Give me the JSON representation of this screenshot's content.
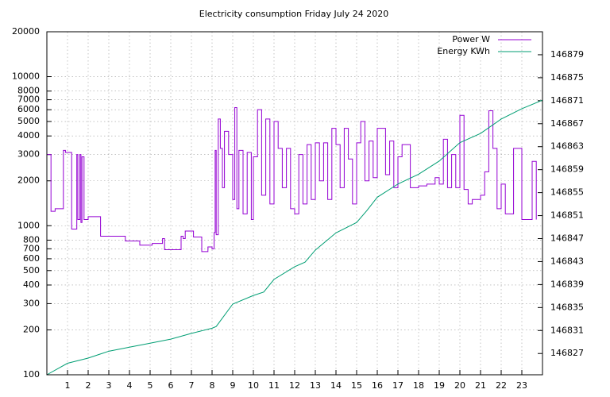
{
  "chart_data": {
    "type": "line",
    "title": "Electricity consumption Friday July 24 2020",
    "xlim": [
      0,
      24
    ],
    "xticks": [
      1,
      2,
      3,
      4,
      5,
      6,
      7,
      8,
      9,
      10,
      11,
      12,
      13,
      14,
      15,
      16,
      17,
      18,
      19,
      20,
      21,
      22,
      23
    ],
    "ylim": [
      100,
      20000
    ],
    "yscale": "log",
    "yticks": [
      100,
      200,
      300,
      400,
      500,
      600,
      700,
      800,
      1000,
      2000,
      3000,
      4000,
      5000,
      6000,
      7000,
      8000,
      10000,
      20000
    ],
    "y2lim": [
      146823.3,
      146883
    ],
    "y2ticks": [
      146827,
      146831,
      146835,
      146839,
      146843,
      146847,
      146851,
      146855,
      146859,
      146863,
      146867,
      146871,
      146875,
      146879
    ],
    "grid": true,
    "legend": "top-right",
    "series": [
      {
        "name": "Power W",
        "color": "#9400d3",
        "step": true,
        "x": [
          0,
          0.2,
          0.4,
          0.8,
          0.9,
          1.2,
          1.45,
          1.5,
          1.6,
          1.65,
          1.7,
          1.8,
          2.0,
          2.2,
          2.6,
          3.2,
          3.8,
          4.5,
          5.1,
          5.6,
          5.7,
          6.4,
          6.5,
          6.6,
          6.7,
          7.1,
          7.5,
          7.8,
          8.0,
          8.1,
          8.15,
          8.2,
          8.3,
          8.4,
          8.5,
          8.6,
          8.8,
          9.0,
          9.1,
          9.2,
          9.3,
          9.5,
          9.7,
          9.9,
          10.0,
          10.2,
          10.4,
          10.6,
          10.8,
          11.0,
          11.2,
          11.4,
          11.6,
          11.8,
          12.0,
          12.2,
          12.4,
          12.6,
          12.8,
          13.0,
          13.2,
          13.4,
          13.6,
          13.8,
          14.0,
          14.2,
          14.4,
          14.6,
          14.8,
          15.0,
          15.2,
          15.4,
          15.6,
          15.8,
          16.0,
          16.2,
          16.4,
          16.6,
          16.8,
          17.0,
          17.2,
          17.6,
          18.0,
          18.4,
          18.8,
          19.0,
          19.2,
          19.4,
          19.6,
          19.8,
          20.0,
          20.2,
          20.4,
          20.6,
          21.0,
          21.2,
          21.4,
          21.6,
          21.8,
          22.0,
          22.2,
          22.6,
          22.8,
          23.0,
          23.2,
          23.5,
          23.7
        ],
        "values": [
          3000,
          1250,
          1300,
          3200,
          3100,
          950,
          3000,
          1100,
          3000,
          1050,
          2900,
          1100,
          1150,
          1150,
          850,
          850,
          790,
          740,
          760,
          820,
          690,
          690,
          850,
          820,
          920,
          840,
          670,
          720,
          700,
          900,
          3200,
          870,
          5200,
          3300,
          1800,
          4300,
          3000,
          1500,
          6200,
          1300,
          3200,
          1200,
          3100,
          1100,
          2900,
          6000,
          1600,
          5200,
          1400,
          5000,
          3300,
          1800,
          3300,
          1300,
          1200,
          3000,
          1400,
          3500,
          1500,
          3600,
          2000,
          3600,
          1500,
          4500,
          3500,
          1800,
          4500,
          2800,
          1400,
          3600,
          5000,
          2000,
          3700,
          2100,
          4500,
          4500,
          2200,
          3700,
          1800,
          2900,
          3500,
          1800,
          1850,
          1900,
          2100,
          1900,
          3800,
          1800,
          3000,
          1800,
          5500,
          1750,
          1400,
          1500,
          1600,
          2300,
          5900,
          3300,
          1300,
          1900,
          1200,
          3300,
          3300,
          1100,
          1100,
          2700,
          1100
        ]
      },
      {
        "name": "Energy KWh",
        "color": "#009e73",
        "axis": "y2",
        "x": [
          0,
          1,
          2,
          3,
          4,
          5,
          6,
          7,
          8,
          8.2,
          9,
          10,
          10.5,
          11,
          12,
          12.5,
          13,
          14,
          15,
          15.5,
          16,
          17,
          18,
          19,
          20,
          21,
          22,
          23,
          24
        ],
        "values": [
          146823.3,
          146825.3,
          146826.2,
          146827.4,
          146828.1,
          146828.8,
          146829.5,
          146830.5,
          146831.4,
          146831.7,
          146835.6,
          146837.1,
          146837.7,
          146839.9,
          146842.1,
          146842.9,
          146845,
          146848,
          146849.8,
          146851.9,
          146854.2,
          146856.5,
          146858.2,
          146860.5,
          146863.7,
          146865.3,
          146867.8,
          146869.6,
          146871.1
        ]
      }
    ]
  }
}
